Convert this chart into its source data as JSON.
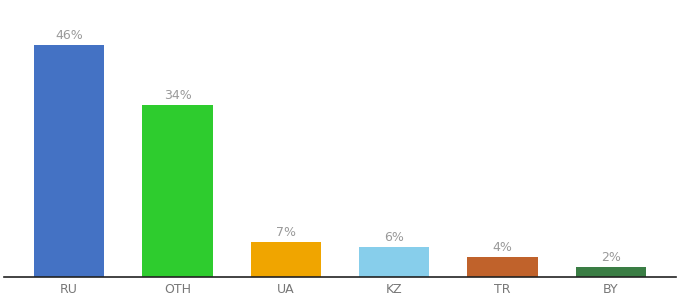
{
  "categories": [
    "RU",
    "OTH",
    "UA",
    "KZ",
    "TR",
    "BY"
  ],
  "values": [
    46,
    34,
    7,
    6,
    4,
    2
  ],
  "bar_colors": [
    "#4472c4",
    "#2ecc2e",
    "#f0a500",
    "#87ceeb",
    "#c0622b",
    "#3a7d44"
  ],
  "labels": [
    "46%",
    "34%",
    "7%",
    "6%",
    "4%",
    "2%"
  ],
  "ylim": [
    0,
    54
  ],
  "background_color": "#ffffff",
  "label_color": "#999999",
  "label_fontsize": 9,
  "xlabel_fontsize": 9,
  "bar_width": 0.65
}
